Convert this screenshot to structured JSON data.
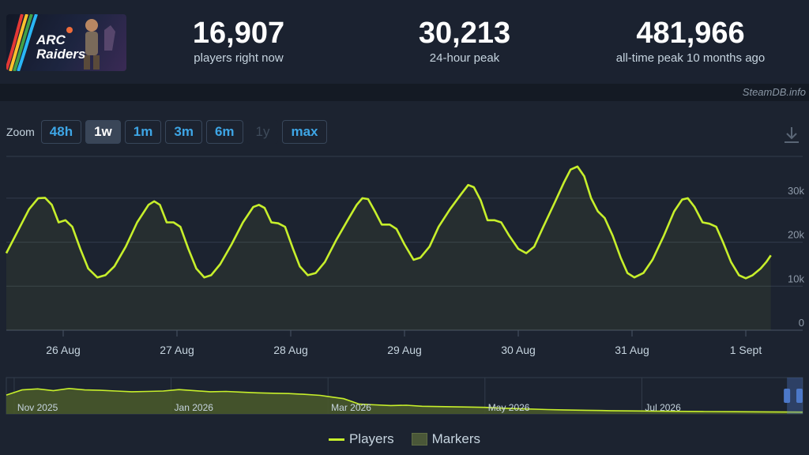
{
  "header": {
    "logo_text": [
      "ARC",
      "Raiders"
    ],
    "stats": [
      {
        "value": "16,907",
        "label": "players right now"
      },
      {
        "value": "30,213",
        "label": "24-hour peak"
      },
      {
        "value": "481,966",
        "label": "all-time peak 10 months ago"
      }
    ]
  },
  "credit": "SteamDB.info",
  "zoom": {
    "label": "Zoom",
    "buttons": [
      {
        "label": "48h",
        "state": "normal"
      },
      {
        "label": "1w",
        "state": "active"
      },
      {
        "label": "1m",
        "state": "normal"
      },
      {
        "label": "3m",
        "state": "normal"
      },
      {
        "label": "6m",
        "state": "normal"
      },
      {
        "label": "1y",
        "state": "disabled"
      },
      {
        "label": "max",
        "state": "normal"
      }
    ],
    "download_icon": "download-icon"
  },
  "legend": {
    "players": "Players",
    "markers": "Markers"
  },
  "colors": {
    "line": "#c7ef2b",
    "navigator_fill": "#4a5a2a",
    "navigator_handle": "#4c78c8"
  },
  "chart_data": [
    {
      "type": "line",
      "series": [
        {
          "name": "Players"
        }
      ],
      "x_unit": "days since 25 Aug",
      "x_ticks": [
        {
          "x": 0.5,
          "label": "26 Aug"
        },
        {
          "x": 1.5,
          "label": "27 Aug"
        },
        {
          "x": 2.5,
          "label": "28 Aug"
        },
        {
          "x": 3.5,
          "label": "29 Aug"
        },
        {
          "x": 4.5,
          "label": "30 Aug"
        },
        {
          "x": 5.5,
          "label": "31 Aug"
        },
        {
          "x": 6.5,
          "label": "1 Sept"
        }
      ],
      "xlim": [
        0,
        7
      ],
      "y_ticks": [
        {
          "y": 0,
          "label": "0"
        },
        {
          "y": 10000,
          "label": "10k"
        },
        {
          "y": 20000,
          "label": "20k"
        },
        {
          "y": 30000,
          "label": "30k"
        }
      ],
      "ylim": [
        0,
        39500
      ],
      "grid": true,
      "points": [
        [
          0,
          17500
        ],
        [
          0.1,
          22500
        ],
        [
          0.2,
          27500
        ],
        [
          0.28,
          30000
        ],
        [
          0.34,
          30100
        ],
        [
          0.4,
          28500
        ],
        [
          0.46,
          24500
        ],
        [
          0.52,
          25000
        ],
        [
          0.58,
          23500
        ],
        [
          0.65,
          18500
        ],
        [
          0.72,
          14000
        ],
        [
          0.8,
          12000
        ],
        [
          0.87,
          12500
        ],
        [
          0.95,
          14500
        ],
        [
          1.05,
          19000
        ],
        [
          1.15,
          24500
        ],
        [
          1.25,
          28500
        ],
        [
          1.3,
          29300
        ],
        [
          1.35,
          28500
        ],
        [
          1.41,
          24500
        ],
        [
          1.47,
          24500
        ],
        [
          1.53,
          23500
        ],
        [
          1.6,
          18500
        ],
        [
          1.67,
          14000
        ],
        [
          1.74,
          12000
        ],
        [
          1.8,
          12500
        ],
        [
          1.88,
          15000
        ],
        [
          1.98,
          19500
        ],
        [
          2.08,
          24500
        ],
        [
          2.17,
          28000
        ],
        [
          2.22,
          28500
        ],
        [
          2.27,
          27800
        ],
        [
          2.33,
          24500
        ],
        [
          2.39,
          24300
        ],
        [
          2.45,
          23500
        ],
        [
          2.52,
          18500
        ],
        [
          2.58,
          14500
        ],
        [
          2.65,
          12500
        ],
        [
          2.72,
          13000
        ],
        [
          2.8,
          15500
        ],
        [
          2.9,
          20500
        ],
        [
          3.0,
          25000
        ],
        [
          3.08,
          28500
        ],
        [
          3.13,
          30000
        ],
        [
          3.18,
          29800
        ],
        [
          3.24,
          27000
        ],
        [
          3.3,
          24000
        ],
        [
          3.37,
          24000
        ],
        [
          3.43,
          23000
        ],
        [
          3.5,
          19500
        ],
        [
          3.58,
          16000
        ],
        [
          3.64,
          16500
        ],
        [
          3.72,
          19000
        ],
        [
          3.8,
          23500
        ],
        [
          3.9,
          27500
        ],
        [
          4.0,
          31000
        ],
        [
          4.06,
          33000
        ],
        [
          4.11,
          32500
        ],
        [
          4.17,
          29500
        ],
        [
          4.23,
          25000
        ],
        [
          4.29,
          25000
        ],
        [
          4.35,
          24500
        ],
        [
          4.42,
          21500
        ],
        [
          4.5,
          18500
        ],
        [
          4.57,
          17500
        ],
        [
          4.64,
          19000
        ],
        [
          4.72,
          23500
        ],
        [
          4.82,
          29000
        ],
        [
          4.9,
          33500
        ],
        [
          4.96,
          36500
        ],
        [
          5.02,
          37200
        ],
        [
          5.08,
          35000
        ],
        [
          5.14,
          30000
        ],
        [
          5.2,
          27000
        ],
        [
          5.26,
          25500
        ],
        [
          5.33,
          21500
        ],
        [
          5.4,
          16500
        ],
        [
          5.46,
          13000
        ],
        [
          5.52,
          12000
        ],
        [
          5.6,
          13000
        ],
        [
          5.68,
          16000
        ],
        [
          5.78,
          21500
        ],
        [
          5.87,
          27000
        ],
        [
          5.94,
          29700
        ],
        [
          5.99,
          30000
        ],
        [
          6.05,
          28000
        ],
        [
          6.12,
          24500
        ],
        [
          6.18,
          24200
        ],
        [
          6.24,
          23500
        ],
        [
          6.3,
          20000
        ],
        [
          6.37,
          15500
        ],
        [
          6.44,
          12500
        ],
        [
          6.5,
          11800
        ],
        [
          6.56,
          12500
        ],
        [
          6.63,
          14000
        ],
        [
          6.68,
          15500
        ],
        [
          6.72,
          17000
        ]
      ]
    },
    {
      "type": "area",
      "x_unit": "months since 1 Nov 2025",
      "x_ticks": [
        {
          "x": 0,
          "label": "Nov 2025"
        },
        {
          "x": 2,
          "label": "Jan 2026"
        },
        {
          "x": 4,
          "label": "Mar 2026"
        },
        {
          "x": 6,
          "label": "May 2026"
        },
        {
          "x": 8,
          "label": "Jul 2026"
        }
      ],
      "xlim": [
        -0.1,
        10.05
      ],
      "ylim": [
        0,
        50000
      ],
      "selection_x": [
        9.85,
        10.05
      ],
      "points": [
        [
          -0.1,
          26000
        ],
        [
          0.1,
          33000
        ],
        [
          0.3,
          34500
        ],
        [
          0.5,
          32000
        ],
        [
          0.7,
          35000
        ],
        [
          0.9,
          33000
        ],
        [
          1.1,
          32500
        ],
        [
          1.3,
          31500
        ],
        [
          1.5,
          30500
        ],
        [
          1.7,
          31000
        ],
        [
          1.9,
          31500
        ],
        [
          2.1,
          33500
        ],
        [
          2.3,
          32000
        ],
        [
          2.5,
          30500
        ],
        [
          2.7,
          31000
        ],
        [
          2.9,
          30000
        ],
        [
          3.1,
          29000
        ],
        [
          3.3,
          28500
        ],
        [
          3.5,
          28000
        ],
        [
          3.7,
          27000
        ],
        [
          3.9,
          25500
        ],
        [
          4.0,
          24000
        ],
        [
          4.2,
          21000
        ],
        [
          4.4,
          13500
        ],
        [
          4.6,
          12500
        ],
        [
          4.8,
          11500
        ],
        [
          5.0,
          12000
        ],
        [
          5.2,
          10500
        ],
        [
          5.5,
          10000
        ],
        [
          5.8,
          9500
        ],
        [
          6.0,
          9000
        ],
        [
          6.2,
          8000
        ],
        [
          6.5,
          7000
        ],
        [
          6.8,
          6000
        ],
        [
          7.0,
          5500
        ],
        [
          7.3,
          5000
        ],
        [
          7.6,
          4500
        ],
        [
          8.0,
          4000
        ],
        [
          8.4,
          3600
        ],
        [
          8.8,
          3300
        ],
        [
          9.2,
          3000
        ],
        [
          9.6,
          2800
        ],
        [
          9.85,
          2600
        ],
        [
          10.05,
          2500
        ]
      ]
    }
  ]
}
